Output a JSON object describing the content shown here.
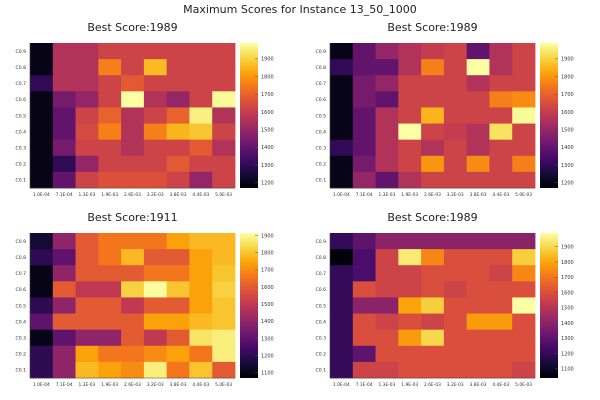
{
  "figure_title": "Maximum Scores for Instance 13_50_1000",
  "y_tick_labels": [
    "C0.1",
    "C0.2",
    "C0.3",
    "C0.4",
    "C0.5",
    "C0.6",
    "C0.7",
    "C0.8",
    "C0.9"
  ],
  "x_tick_labels": [
    "1.0E-04",
    "7.1E-04",
    "1.3E-03",
    "1.9E-03",
    "2.6E-03",
    "3.2E-03",
    "3.8E-03",
    "4.4E-03",
    "5.0E-03"
  ],
  "colormap": "inferno",
  "chart_data": [
    {
      "type": "heatmap",
      "title": "Best Score:1989",
      "zlim": [
        1170,
        1990
      ],
      "colorbar_ticks": [
        1200,
        1300,
        1400,
        1500,
        1600,
        1700,
        1800,
        1900
      ],
      "values": [
        [
          1200,
          1560,
          1560,
          1620,
          1620,
          1620,
          1620,
          1620,
          1620
        ],
        [
          1200,
          1560,
          1560,
          1760,
          1620,
          1860,
          1620,
          1620,
          1620
        ],
        [
          1300,
          1560,
          1560,
          1620,
          1680,
          1620,
          1620,
          1620,
          1620
        ],
        [
          1200,
          1440,
          1500,
          1620,
          1989,
          1560,
          1500,
          1620,
          1980
        ],
        [
          1200,
          1400,
          1620,
          1700,
          1560,
          1620,
          1700,
          1960,
          1560
        ],
        [
          1200,
          1400,
          1640,
          1760,
          1560,
          1760,
          1850,
          1880,
          1620
        ],
        [
          1200,
          1440,
          1620,
          1620,
          1560,
          1620,
          1620,
          1680,
          1560
        ],
        [
          1200,
          1300,
          1500,
          1620,
          1620,
          1620,
          1680,
          1620,
          1620
        ],
        [
          1200,
          1400,
          1620,
          1660,
          1660,
          1660,
          1620,
          1500,
          1620
        ]
      ]
    },
    {
      "type": "heatmap",
      "title": "Best Score:1989",
      "zlim": [
        1170,
        1990
      ],
      "colorbar_ticks": [
        1200,
        1300,
        1400,
        1500,
        1600,
        1700,
        1800,
        1900
      ],
      "values": [
        [
          1200,
          1400,
          1500,
          1560,
          1600,
          1620,
          1400,
          1560,
          1620
        ],
        [
          1300,
          1400,
          1400,
          1560,
          1760,
          1620,
          1989,
          1560,
          1620
        ],
        [
          1200,
          1440,
          1500,
          1620,
          1620,
          1620,
          1560,
          1620,
          1620
        ],
        [
          1200,
          1440,
          1400,
          1620,
          1620,
          1620,
          1620,
          1760,
          1780
        ],
        [
          1200,
          1400,
          1560,
          1620,
          1850,
          1620,
          1620,
          1620,
          1980
        ],
        [
          1200,
          1400,
          1560,
          1989,
          1620,
          1600,
          1560,
          1930,
          1620
        ],
        [
          1300,
          1400,
          1560,
          1620,
          1560,
          1620,
          1560,
          1620,
          1620
        ],
        [
          1200,
          1440,
          1560,
          1620,
          1800,
          1620,
          1780,
          1620,
          1760
        ],
        [
          1200,
          1500,
          1400,
          1560,
          1620,
          1620,
          1620,
          1620,
          1620
        ]
      ]
    },
    {
      "type": "heatmap",
      "title": "Best Score:1911",
      "zlim": [
        1070,
        1915
      ],
      "colorbar_ticks": [
        1100,
        1200,
        1300,
        1400,
        1500,
        1600,
        1700,
        1800,
        1900
      ],
      "values": [
        [
          1150,
          1400,
          1600,
          1660,
          1660,
          1660,
          1740,
          1780,
          1780
        ],
        [
          1200,
          1300,
          1600,
          1660,
          1780,
          1600,
          1600,
          1740,
          1780
        ],
        [
          1100,
          1400,
          1600,
          1600,
          1600,
          1660,
          1660,
          1740,
          1800
        ],
        [
          1100,
          1600,
          1500,
          1500,
          1820,
          1911,
          1800,
          1740,
          1820
        ],
        [
          1200,
          1400,
          1600,
          1600,
          1500,
          1600,
          1600,
          1740,
          1800
        ],
        [
          1300,
          1600,
          1600,
          1600,
          1600,
          1740,
          1740,
          1780,
          1800
        ],
        [
          1100,
          1300,
          1400,
          1400,
          1600,
          1500,
          1600,
          1860,
          1880
        ],
        [
          1200,
          1400,
          1740,
          1660,
          1660,
          1700,
          1740,
          1660,
          1880
        ],
        [
          1200,
          1400,
          1780,
          1740,
          1700,
          1880,
          1660,
          1800,
          1600
        ]
      ]
    },
    {
      "type": "heatmap",
      "title": "Best Score:1989",
      "zlim": [
        1040,
        1990
      ],
      "colorbar_ticks": [
        1100,
        1200,
        1300,
        1400,
        1500,
        1600,
        1700,
        1800,
        1900
      ],
      "values": [
        [
          1200,
          1300,
          1400,
          1400,
          1400,
          1400,
          1400,
          1400,
          1400
        ],
        [
          1050,
          1250,
          1560,
          1940,
          1740,
          1600,
          1600,
          1600,
          1880
        ],
        [
          1200,
          1250,
          1560,
          1560,
          1600,
          1600,
          1600,
          1560,
          1740
        ],
        [
          1200,
          1600,
          1560,
          1560,
          1600,
          1560,
          1600,
          1600,
          1600
        ],
        [
          1200,
          1400,
          1400,
          1800,
          1880,
          1600,
          1600,
          1600,
          1989
        ],
        [
          1200,
          1600,
          1560,
          1600,
          1560,
          1600,
          1780,
          1780,
          1600
        ],
        [
          1200,
          1600,
          1600,
          1780,
          1900,
          1600,
          1600,
          1600,
          1600
        ],
        [
          1200,
          1300,
          1600,
          1600,
          1600,
          1600,
          1600,
          1600,
          1600
        ],
        [
          1200,
          1560,
          1560,
          1600,
          1600,
          1600,
          1600,
          1600,
          1560
        ]
      ]
    }
  ]
}
